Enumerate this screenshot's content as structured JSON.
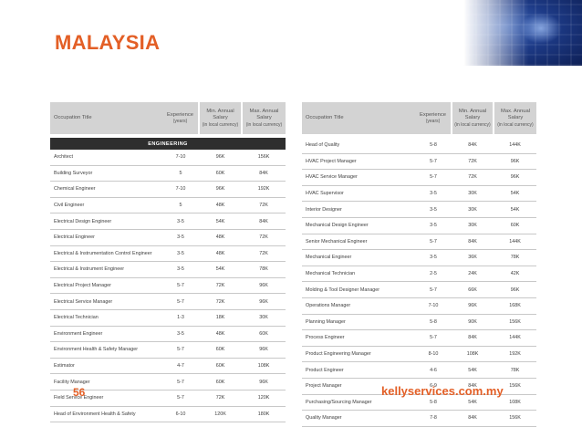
{
  "page": {
    "title": "MALAYSIA",
    "number": "56",
    "url": "kellyservices.com.my"
  },
  "headers": {
    "occupation": "Occupation Title",
    "experience": "Experience",
    "experience_sub": "(years)",
    "min": "Min. Annual Salary",
    "min_sub": "(in local currency)",
    "max": "Max. Annual Salary",
    "max_sub": "(in local currency)"
  },
  "left_table": {
    "section": "ENGINEERING",
    "rows": [
      {
        "title": "Architect",
        "experience": "7-10",
        "min": "96K",
        "max": "156K"
      },
      {
        "title": "Building Surveyor",
        "experience": "5",
        "min": "60K",
        "max": "84K"
      },
      {
        "title": "Chemical Engineer",
        "experience": "7-10",
        "min": "96K",
        "max": "192K"
      },
      {
        "title": "Civil Engineer",
        "experience": "5",
        "min": "48K",
        "max": "72K"
      },
      {
        "title": "Electrical Design Engineer",
        "experience": "3-5",
        "min": "54K",
        "max": "84K"
      },
      {
        "title": "Electrical Engineer",
        "experience": "3-5",
        "min": "48K",
        "max": "72K"
      },
      {
        "title": "Electrical & Instrumentation Control Engineer",
        "experience": "3-5",
        "min": "48K",
        "max": "72K"
      },
      {
        "title": "Electrical & Instrument Engineer",
        "experience": "3-5",
        "min": "54K",
        "max": "78K"
      },
      {
        "title": "Electrical Project Manager",
        "experience": "5-7",
        "min": "72K",
        "max": "96K"
      },
      {
        "title": "Electrical Service Manager",
        "experience": "5-7",
        "min": "72K",
        "max": "96K"
      },
      {
        "title": "Electrical Technician",
        "experience": "1-3",
        "min": "18K",
        "max": "30K"
      },
      {
        "title": "Environment Engineer",
        "experience": "3-5",
        "min": "48K",
        "max": "60K"
      },
      {
        "title": "Environment Health & Safety Manager",
        "experience": "5-7",
        "min": "60K",
        "max": "96K"
      },
      {
        "title": "Estimator",
        "experience": "4-7",
        "min": "60K",
        "max": "108K"
      },
      {
        "title": "Facility Manager",
        "experience": "5-7",
        "min": "60K",
        "max": "96K"
      },
      {
        "title": "Field Service Engineer",
        "experience": "5-7",
        "min": "72K",
        "max": "120K"
      },
      {
        "title": "Head of Environment Health & Safety",
        "experience": "6-10",
        "min": "120K",
        "max": "180K"
      }
    ]
  },
  "right_table": {
    "rows": [
      {
        "title": "Head of Quality",
        "experience": "5-8",
        "min": "84K",
        "max": "144K"
      },
      {
        "title": "HVAC Project Manager",
        "experience": "5-7",
        "min": "72K",
        "max": "96K"
      },
      {
        "title": "HVAC Service Manager",
        "experience": "5-7",
        "min": "72K",
        "max": "96K"
      },
      {
        "title": "HVAC Supervisor",
        "experience": "3-5",
        "min": "30K",
        "max": "54K"
      },
      {
        "title": "Interior Designer",
        "experience": "3-5",
        "min": "30K",
        "max": "54K"
      },
      {
        "title": "Mechanical Design Engineer",
        "experience": "3-5",
        "min": "30K",
        "max": "60K"
      },
      {
        "title": "Senior Mechanical Engineer",
        "experience": "5-7",
        "min": "84K",
        "max": "144K"
      },
      {
        "title": "Mechanical Engineer",
        "experience": "3-5",
        "min": "36K",
        "max": "78K"
      },
      {
        "title": "Mechanical Technician",
        "experience": "2-5",
        "min": "24K",
        "max": "42K"
      },
      {
        "title": "Molding & Tool Designer Manager",
        "experience": "5-7",
        "min": "66K",
        "max": "96K"
      },
      {
        "title": "Operations Manager",
        "experience": "7-10",
        "min": "96K",
        "max": "168K"
      },
      {
        "title": "Planning Manager",
        "experience": "5-8",
        "min": "90K",
        "max": "156K"
      },
      {
        "title": "Process Engineer",
        "experience": "5-7",
        "min": "84K",
        "max": "144K"
      },
      {
        "title": "Product Engineering Manager",
        "experience": "8-10",
        "min": "108K",
        "max": "192K"
      },
      {
        "title": "Product Engineer",
        "experience": "4-6",
        "min": "54K",
        "max": "78K"
      },
      {
        "title": "Project Manager",
        "experience": "6-9",
        "min": "84K",
        "max": "156K"
      },
      {
        "title": "Purchasing/Sourcing Manager",
        "experience": "5-8",
        "min": "54K",
        "max": "108K"
      },
      {
        "title": "Quality Manager",
        "experience": "7-8",
        "min": "84K",
        "max": "156K"
      }
    ]
  },
  "colors": {
    "accent": "#e35f26",
    "header_bg": "#d3d3d3",
    "section_bg": "#2e2e2e"
  }
}
